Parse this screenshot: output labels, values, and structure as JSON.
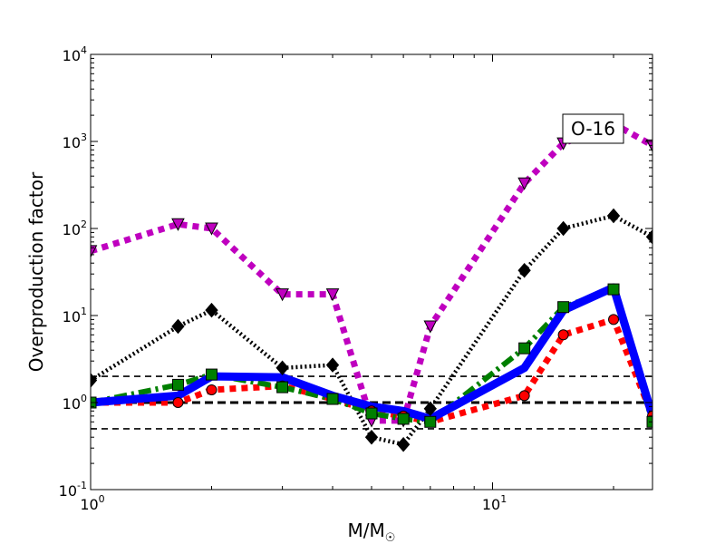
{
  "chart_data": {
    "type": "line",
    "xscale": "log",
    "yscale": "log",
    "xlim": [
      1,
      25
    ],
    "ylim": [
      0.1,
      10000
    ],
    "xlabel": "M/M",
    "xlabel_subscript": "☉",
    "ylabel": "Overproduction factor",
    "annotation": "O-16",
    "x_ticks": [
      {
        "value": 1,
        "base": "10",
        "exp": "0"
      },
      {
        "value": 10,
        "base": "10",
        "exp": "1"
      }
    ],
    "y_ticks": [
      {
        "value": 0.1,
        "base": "10",
        "exp": "-1"
      },
      {
        "value": 1,
        "base": "10",
        "exp": "0"
      },
      {
        "value": 10,
        "base": "10",
        "exp": "1"
      },
      {
        "value": 100,
        "base": "10",
        "exp": "2"
      },
      {
        "value": 1000,
        "base": "10",
        "exp": "3"
      },
      {
        "value": 10000,
        "base": "10",
        "exp": "4"
      }
    ],
    "reference_lines": [
      {
        "value": 2,
        "color": "#000000",
        "dash": "dashed"
      },
      {
        "value": 1,
        "color": "#000000",
        "dash": "dashed-thick"
      },
      {
        "value": 0.5,
        "color": "#000000",
        "dash": "dashed"
      }
    ],
    "series": [
      {
        "name": "magenta-triangles",
        "color": "#bf00bf",
        "marker": "triangle-down",
        "line": "dotted-thick",
        "points": [
          [
            1,
            55
          ],
          [
            1.65,
            112
          ],
          [
            2,
            100
          ],
          [
            3,
            17.5
          ],
          [
            4,
            17.5
          ],
          [
            5,
            0.62
          ],
          [
            6,
            0.62
          ],
          [
            7,
            7.5
          ],
          [
            12,
            330
          ],
          [
            15,
            950
          ],
          [
            20,
            1600
          ],
          [
            25,
            900
          ]
        ]
      },
      {
        "name": "black-diamonds",
        "color": "#000000",
        "marker": "diamond",
        "line": "dotted",
        "points": [
          [
            1,
            1.8
          ],
          [
            1.65,
            7.5
          ],
          [
            2,
            11.5
          ],
          [
            3,
            2.5
          ],
          [
            4,
            2.7
          ],
          [
            5,
            0.4
          ],
          [
            6,
            0.33
          ],
          [
            7,
            0.85
          ],
          [
            12,
            33
          ],
          [
            15,
            100
          ],
          [
            20,
            140
          ],
          [
            25,
            80
          ]
        ]
      },
      {
        "name": "red-circles",
        "color": "#ff0000",
        "marker": "circle",
        "line": "dotted-thick",
        "points": [
          [
            1,
            1.0
          ],
          [
            1.65,
            1.0
          ],
          [
            2,
            1.4
          ],
          [
            3,
            1.55
          ],
          [
            4,
            1.1
          ],
          [
            5,
            0.8
          ],
          [
            6,
            0.7
          ],
          [
            7,
            0.6
          ],
          [
            12,
            1.2
          ],
          [
            15,
            6
          ],
          [
            20,
            9
          ],
          [
            25,
            0.7
          ]
        ]
      },
      {
        "name": "green-squares",
        "color": "#007f00",
        "marker": "square",
        "line": "dashdot",
        "points": [
          [
            1,
            1.0
          ],
          [
            1.65,
            1.6
          ],
          [
            2,
            2.1
          ],
          [
            3,
            1.5
          ],
          [
            4,
            1.1
          ],
          [
            5,
            0.75
          ],
          [
            6,
            0.65
          ],
          [
            7,
            0.6
          ],
          [
            12,
            4.2
          ],
          [
            15,
            12.5
          ],
          [
            20,
            20
          ],
          [
            25,
            0.6
          ]
        ]
      },
      {
        "name": "blue-line",
        "color": "#0000ff",
        "marker": "none",
        "line": "solid-thick",
        "points": [
          [
            1,
            1.0
          ],
          [
            1.65,
            1.2
          ],
          [
            2,
            2.0
          ],
          [
            3,
            1.95
          ],
          [
            4,
            1.2
          ],
          [
            5,
            0.9
          ],
          [
            6,
            0.8
          ],
          [
            7,
            0.65
          ],
          [
            12,
            2.5
          ],
          [
            15,
            11.5
          ],
          [
            20,
            21
          ],
          [
            25,
            0.7
          ]
        ]
      }
    ]
  }
}
